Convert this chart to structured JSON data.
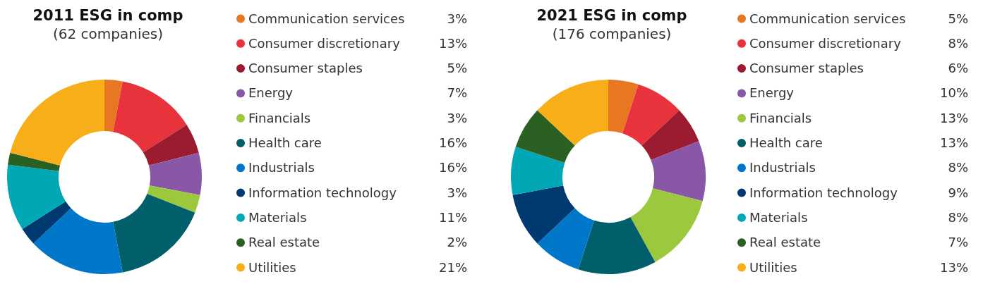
{
  "chart_data": [
    {
      "type": "donut",
      "title": "2011 ESG in comp",
      "subtitle": "(62 companies)",
      "legend": "right",
      "categories": [
        "Communication services",
        "Consumer discretionary",
        "Consumer staples",
        "Energy",
        "Financials",
        "Health care",
        "Industrials",
        "Information technology",
        "Materials",
        "Real estate",
        "Utilities"
      ],
      "values": [
        3,
        13,
        5,
        7,
        3,
        16,
        16,
        3,
        11,
        2,
        21
      ],
      "value_labels": [
        "3%",
        "13%",
        "5%",
        "7%",
        "3%",
        "16%",
        "16%",
        "3%",
        "11%",
        "2%",
        "21%"
      ],
      "colors": [
        "#e87722",
        "#e8323c",
        "#9b1b30",
        "#8a56a6",
        "#9bc83c",
        "#005f6b",
        "#0077c8",
        "#003a70",
        "#00a7b5",
        "#2a6021",
        "#f8ae19"
      ]
    },
    {
      "type": "donut",
      "title": "2021 ESG in comp",
      "subtitle": "(176 companies)",
      "legend": "right",
      "categories": [
        "Communication services",
        "Consumer discretionary",
        "Consumer staples",
        "Energy",
        "Financials",
        "Health care",
        "Industrials",
        "Information technology",
        "Materials",
        "Real estate",
        "Utilities"
      ],
      "values": [
        5,
        8,
        6,
        10,
        13,
        13,
        8,
        9,
        8,
        7,
        13
      ],
      "value_labels": [
        "5%",
        "8%",
        "6%",
        "10%",
        "13%",
        "13%",
        "8%",
        "9%",
        "8%",
        "7%",
        "13%"
      ],
      "colors": [
        "#e87722",
        "#e8323c",
        "#9b1b30",
        "#8a56a6",
        "#9bc83c",
        "#005f6b",
        "#0077c8",
        "#003a70",
        "#00a7b5",
        "#2a6021",
        "#f8ae19"
      ]
    }
  ]
}
